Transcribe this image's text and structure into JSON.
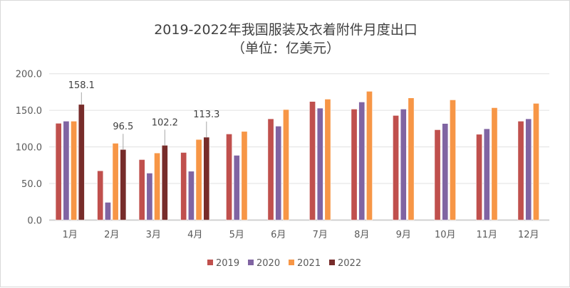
{
  "chart_data": {
    "type": "bar",
    "title": "2019-2022年我国服装及衣着附件月度出口",
    "subtitle": "（单位：亿美元）",
    "categories": [
      "1月",
      "2月",
      "3月",
      "4月",
      "5月",
      "6月",
      "7月",
      "8月",
      "9月",
      "10月",
      "11月",
      "12月"
    ],
    "series": [
      {
        "name": "2019",
        "color": "#C0504D",
        "values": [
          132.3,
          67.4,
          82.7,
          92.4,
          117.7,
          138.4,
          162.1,
          151.7,
          143.0,
          123.5,
          117.3,
          135.2
        ]
      },
      {
        "name": "2020",
        "color": "#8064A2",
        "values": [
          135.2,
          24.3,
          64.2,
          66.8,
          88.5,
          128.4,
          153.0,
          161.4,
          151.7,
          132.0,
          124.8,
          138.4
        ]
      },
      {
        "name": "2021",
        "color": "#F79646",
        "values": [
          135.2,
          105.0,
          91.7,
          110.2,
          121.2,
          151.1,
          165.3,
          176.0,
          167.0,
          164.3,
          153.6,
          159.5
        ]
      },
      {
        "name": "2022",
        "color": "#772C2A",
        "values": [
          158.1,
          96.5,
          102.2,
          113.3,
          null,
          null,
          null,
          null,
          null,
          null,
          null,
          null
        ]
      }
    ],
    "data_labels": {
      "series": "2022",
      "labels": [
        "158.1",
        "96.5",
        "102.2",
        "113.3"
      ]
    },
    "yticks": [
      "0.0",
      "50.0",
      "100.0",
      "150.0",
      "200.0"
    ],
    "ylim": [
      0,
      200
    ],
    "grid": true,
    "legend": "bottom"
  }
}
